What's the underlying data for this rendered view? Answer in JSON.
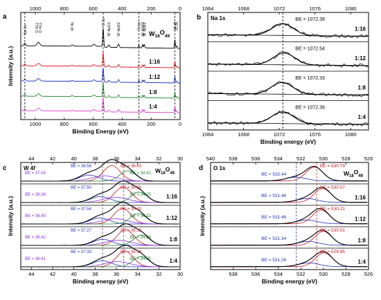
{
  "panel_letters": [
    "a",
    "b",
    "c",
    "d"
  ],
  "chart_data": [
    {
      "id": "a",
      "type": "line",
      "xlabel": "Binding Energy (eV)",
      "ylabel": "Intensity (a.u.)",
      "xlim": [
        1100,
        0
      ],
      "xticks_bottom": [
        1000,
        800,
        600,
        400,
        200,
        0
      ],
      "xticks_top": [
        1000,
        800,
        600,
        400,
        200,
        0
      ],
      "peak_labels": [
        "Na 1s",
        "O KLL",
        "O KLL",
        "W 4s",
        "O 1s",
        "W 4p1/2",
        "W 4p3/2",
        "C 1s",
        "W 4d3/2",
        "W 4d5/2",
        "W 4f",
        "O 2s"
      ],
      "dashed_lines_at": [
        1072,
        531,
        285,
        36
      ],
      "colors": [
        "#000000",
        "#e0141e",
        "#1e2fbf",
        "#1f8a32",
        "#e13fc7"
      ],
      "series": [
        {
          "name": "W18O49",
          "name_main": "W",
          "name_sub1": "18",
          "name_mid": "O",
          "name_sub2": "49"
        },
        {
          "name": "1:16"
        },
        {
          "name": "1:12"
        },
        {
          "name": "1:8"
        },
        {
          "name": "1:4"
        }
      ]
    },
    {
      "id": "b",
      "type": "line",
      "title": "Na 1s",
      "xlabel": "Binding energy (eV)",
      "ylabel": "",
      "xlim": [
        1064,
        1082
      ],
      "xticks_bottom": [
        1064,
        1068,
        1072,
        1076,
        1080
      ],
      "xticks_top": [
        1064,
        1068,
        1072,
        1076,
        1080
      ],
      "series": [
        {
          "name": "1:16",
          "be_text": "BE = 1072.39",
          "be": 1072.39
        },
        {
          "name": "1:12",
          "be_text": "BE = 1072.54",
          "be": 1072.54
        },
        {
          "name": "1:8",
          "be_text": "BE = 1072.33",
          "be": 1072.33
        },
        {
          "name": "1:4",
          "be_text": "BE = 1072.39",
          "be": 1072.39
        }
      ]
    },
    {
      "id": "c",
      "type": "line",
      "title": "W 4f",
      "xlabel": "Binding energy (eV)",
      "ylabel": "Intensity (a.u.)",
      "xlim": [
        45,
        30
      ],
      "xticks_bottom": [
        44,
        42,
        40,
        38,
        36,
        34,
        32,
        30
      ],
      "xticks_top": [
        44,
        42,
        40,
        38,
        36,
        34,
        32,
        30
      ],
      "dashed_lines_at": [
        37.3,
        35.3
      ],
      "series": [
        {
          "name": "W18O49",
          "name_main": "W",
          "name_sub1": "18",
          "name_mid": "O",
          "name_sub2": "49",
          "labels": [
            {
              "text": "BE = 38.56",
              "color": "#1e2fbf"
            },
            {
              "text": "BE = 36.43",
              "color": "#c0141e"
            },
            {
              "text": "BE = 37.04",
              "color": "#8a2be2"
            },
            {
              "text": "BE = 34.91",
              "color": "#1f7a2f"
            }
          ]
        },
        {
          "name": "1:16",
          "labels": [
            {
              "text": "BE = 37.50",
              "color": "#1e2fbf"
            },
            {
              "text": "BE = 35.38",
              "color": "#c0141e"
            },
            {
              "text": "BE = 36.38",
              "color": "#8a2be2"
            },
            {
              "text": "BE = 34.25",
              "color": "#1f7a2f"
            }
          ]
        },
        {
          "name": "1:12",
          "labels": [
            {
              "text": "BE = 37.54",
              "color": "#1e2fbf"
            },
            {
              "text": "BE = 35.43",
              "color": "#c0141e"
            },
            {
              "text": "BE = 36.45",
              "color": "#8a2be2"
            },
            {
              "text": "BE = 34.32",
              "color": "#1f7a2f"
            }
          ]
        },
        {
          "name": "1:8",
          "labels": [
            {
              "text": "BE = 37.27",
              "color": "#1e2fbf"
            },
            {
              "text": "BE = 35.15",
              "color": "#c0141e"
            },
            {
              "text": "BE = 36.42",
              "color": "#8a2be2"
            },
            {
              "text": "BE = 34.26",
              "color": "#1f7a2f"
            }
          ]
        },
        {
          "name": "1:4",
          "labels": [
            {
              "text": "BE = 37.33",
              "color": "#1e2fbf"
            },
            {
              "text": "BE = 35.16",
              "color": "#c0141e"
            },
            {
              "text": "BE = 36.41",
              "color": "#8a2be2"
            },
            {
              "text": "BE = 34.25",
              "color": "#1f7a2f"
            }
          ]
        }
      ]
    },
    {
      "id": "d",
      "type": "line",
      "title": "O 1s",
      "xlabel": "Binding energy (eV)",
      "ylabel": "Intensity (a.u.)",
      "xlim": [
        540,
        526
      ],
      "xticks_bottom": [
        538,
        536,
        534,
        532,
        530,
        528,
        526
      ],
      "xticks_top": [
        540,
        538,
        536,
        534,
        532,
        530,
        528,
        526
      ],
      "dashed_lines_at": [
        532.4,
        530.6
      ],
      "series": [
        {
          "name": "W18O49",
          "name_main": "W",
          "name_sub1": "18",
          "name_mid": "O",
          "name_sub2": "49",
          "labels": [
            {
              "text": "BE = 532.44",
              "color": "#1e2fbf"
            },
            {
              "text": "BE = 530.79",
              "color": "#c0141e"
            }
          ]
        },
        {
          "name": "1:16",
          "labels": [
            {
              "text": "BE = 531.46",
              "color": "#1e2fbf"
            },
            {
              "text": "BE = 530.07",
              "color": "#c0141e"
            }
          ]
        },
        {
          "name": "1:12",
          "labels": [
            {
              "text": "BE = 531.46",
              "color": "#1e2fbf"
            },
            {
              "text": "BE = 530.21",
              "color": "#c0141e"
            }
          ]
        },
        {
          "name": "1:8",
          "labels": [
            {
              "text": "BE = 531.34",
              "color": "#1e2fbf"
            },
            {
              "text": "BE = 530.01",
              "color": "#c0141e"
            }
          ]
        },
        {
          "name": "1:4",
          "labels": [
            {
              "text": "BE = 531.26",
              "color": "#1e2fbf"
            },
            {
              "text": "BE = 529.95",
              "color": "#c0141e"
            }
          ]
        }
      ]
    }
  ]
}
